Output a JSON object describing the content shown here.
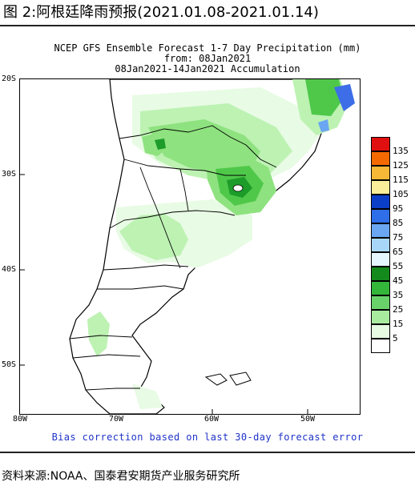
{
  "figure": {
    "title": "图 2:阿根廷降雨预报(2021.01.08-2021.01.14)",
    "source": "资料来源:NOAA、国泰君安期货产业服务研究所"
  },
  "map": {
    "title_line1": "NCEP GFS Ensemble Forecast 1-7 Day Precipitation (mm)",
    "title_line2": "from: 08Jan2021",
    "title_line3": "08Jan2021-14Jan2021 Accumulation",
    "bias_note": "Bias correction based on last 30-day forecast error",
    "lat_labels": [
      "20S",
      "30S",
      "40S",
      "50S"
    ],
    "lon_labels": [
      "80W",
      "70W",
      "60W",
      "50W"
    ],
    "colors": {
      "green_lightest": "#e8fbe4",
      "green_light": "#bdf2b3",
      "green_mid": "#8ee27f",
      "green": "#4fc84a",
      "green_dark": "#1d9c2a",
      "blue": "#3d6ee8",
      "note_blue": "#1f33c8"
    }
  },
  "legend": {
    "items": [
      {
        "label": "135",
        "color": "#e01010"
      },
      {
        "label": "125",
        "color": "#f56a00"
      },
      {
        "label": "115",
        "color": "#f7b838"
      },
      {
        "label": "105",
        "color": "#fbee9a"
      },
      {
        "label": "95",
        "color": "#0b3fc8"
      },
      {
        "label": "85",
        "color": "#2e6ee8"
      },
      {
        "label": "75",
        "color": "#6aa6f2"
      },
      {
        "label": "65",
        "color": "#a8d6f8"
      },
      {
        "label": "55",
        "color": "#e6f6fe"
      },
      {
        "label": "45",
        "color": "#138a1b"
      },
      {
        "label": "35",
        "color": "#33b63a"
      },
      {
        "label": "25",
        "color": "#69d16a"
      },
      {
        "label": "15",
        "color": "#a8ea9e"
      },
      {
        "label": "5",
        "color": "#e7fae2"
      },
      {
        "label": "",
        "color": "#ffffff"
      }
    ]
  }
}
